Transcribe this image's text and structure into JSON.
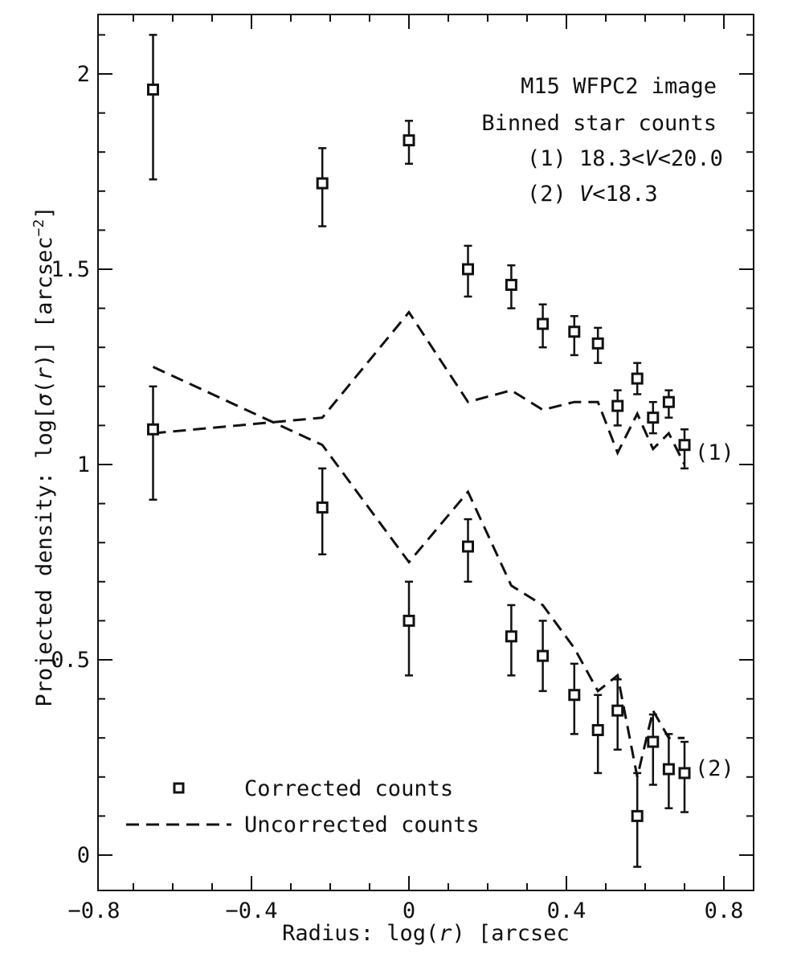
{
  "chart_data": {
    "type": "scatter",
    "title": "",
    "annotations": {
      "line1": "M15 WFPC2 image",
      "line2": "Binned star counts",
      "line3_prefix": "(1) 18.3<",
      "line3_var": "V",
      "line3_suffix": "<20.0",
      "line4_prefix": "(2) ",
      "line4_var": "V",
      "line4_suffix": "<18.3"
    },
    "xlabel": {
      "prefix": "Radius: log(",
      "var": "r",
      "suffix": ") [arcsec"
    },
    "ylabel": {
      "prefix": "Projected density: log[",
      "sigma": "σ",
      "mid": "(",
      "var": "r",
      "suffix": ")] [arcsec",
      "sup": "−2",
      "end": "]"
    },
    "xlim": [
      -0.8,
      0.8
    ],
    "ylim": [
      0,
      2
    ],
    "xticks": [
      {
        "value": -0.8,
        "label": "−0.8"
      },
      {
        "value": -0.4,
        "label": "−0.4"
      },
      {
        "value": 0,
        "label": "0"
      },
      {
        "value": 0.4,
        "label": "0.4"
      },
      {
        "value": 0.8,
        "label": "0.8"
      }
    ],
    "yticks": [
      {
        "value": 0,
        "label": "0"
      },
      {
        "value": 0.5,
        "label": "0.5"
      },
      {
        "value": 1,
        "label": "1"
      },
      {
        "value": 1.5,
        "label": "1.5"
      },
      {
        "value": 2,
        "label": "2"
      }
    ],
    "grid": false,
    "legend": {
      "placement": "bottom-left",
      "items": [
        {
          "label": "Corrected counts",
          "marker": "square"
        },
        {
          "label": "Uncorrected counts",
          "marker": "dashed-line"
        }
      ]
    },
    "series": [
      {
        "name": "(1)",
        "points": [
          {
            "x": -0.65,
            "y": 1.96,
            "ylo": 1.73,
            "yhi": 2.1
          },
          {
            "x": -0.22,
            "y": 1.72,
            "ylo": 1.61,
            "yhi": 1.81
          },
          {
            "x": 0.0,
            "y": 1.83,
            "ylo": 1.77,
            "yhi": 1.88
          },
          {
            "x": 0.15,
            "y": 1.5,
            "ylo": 1.43,
            "yhi": 1.56
          },
          {
            "x": 0.26,
            "y": 1.46,
            "ylo": 1.4,
            "yhi": 1.51
          },
          {
            "x": 0.34,
            "y": 1.36,
            "ylo": 1.3,
            "yhi": 1.41
          },
          {
            "x": 0.42,
            "y": 1.34,
            "ylo": 1.28,
            "yhi": 1.38
          },
          {
            "x": 0.48,
            "y": 1.31,
            "ylo": 1.26,
            "yhi": 1.35
          },
          {
            "x": 0.53,
            "y": 1.15,
            "ylo": 1.1,
            "yhi": 1.19
          },
          {
            "x": 0.58,
            "y": 1.22,
            "ylo": 1.18,
            "yhi": 1.26
          },
          {
            "x": 0.62,
            "y": 1.12,
            "ylo": 1.08,
            "yhi": 1.16
          },
          {
            "x": 0.66,
            "y": 1.16,
            "ylo": 1.12,
            "yhi": 1.19
          },
          {
            "x": 0.7,
            "y": 1.05,
            "ylo": 0.99,
            "yhi": 1.09
          }
        ],
        "uncorrected": {
          "x": [
            -0.65,
            -0.22,
            0.0,
            0.15,
            0.26,
            0.34,
            0.42,
            0.48,
            0.53,
            0.58,
            0.62,
            0.66,
            0.7
          ],
          "y": [
            1.08,
            1.12,
            1.39,
            1.16,
            1.19,
            1.14,
            1.16,
            1.16,
            1.03,
            1.13,
            1.04,
            1.08,
            1.0
          ]
        }
      },
      {
        "name": "(2)",
        "points": [
          {
            "x": -0.65,
            "y": 1.09,
            "ylo": 0.91,
            "yhi": 1.2
          },
          {
            "x": -0.22,
            "y": 0.89,
            "ylo": 0.77,
            "yhi": 0.99
          },
          {
            "x": 0.0,
            "y": 0.6,
            "ylo": 0.46,
            "yhi": 0.7
          },
          {
            "x": 0.15,
            "y": 0.79,
            "ylo": 0.7,
            "yhi": 0.86
          },
          {
            "x": 0.26,
            "y": 0.56,
            "ylo": 0.46,
            "yhi": 0.64
          },
          {
            "x": 0.34,
            "y": 0.51,
            "ylo": 0.42,
            "yhi": 0.6
          },
          {
            "x": 0.42,
            "y": 0.41,
            "ylo": 0.31,
            "yhi": 0.49
          },
          {
            "x": 0.48,
            "y": 0.32,
            "ylo": 0.21,
            "yhi": 0.41
          },
          {
            "x": 0.53,
            "y": 0.37,
            "ylo": 0.27,
            "yhi": 0.45
          },
          {
            "x": 0.58,
            "y": 0.1,
            "ylo": -0.03,
            "yhi": 0.21
          },
          {
            "x": 0.62,
            "y": 0.29,
            "ylo": 0.18,
            "yhi": 0.36
          },
          {
            "x": 0.66,
            "y": 0.22,
            "ylo": 0.12,
            "yhi": 0.31
          },
          {
            "x": 0.7,
            "y": 0.21,
            "ylo": 0.11,
            "yhi": 0.29
          }
        ],
        "uncorrected": {
          "x": [
            -0.65,
            -0.22,
            0.0,
            0.15,
            0.26,
            0.34,
            0.42,
            0.48,
            0.53,
            0.58,
            0.62,
            0.66,
            0.7
          ],
          "y": [
            1.25,
            1.05,
            0.75,
            0.93,
            0.69,
            0.64,
            0.53,
            0.42,
            0.46,
            0.2,
            0.37,
            0.3,
            0.3
          ]
        }
      }
    ]
  }
}
